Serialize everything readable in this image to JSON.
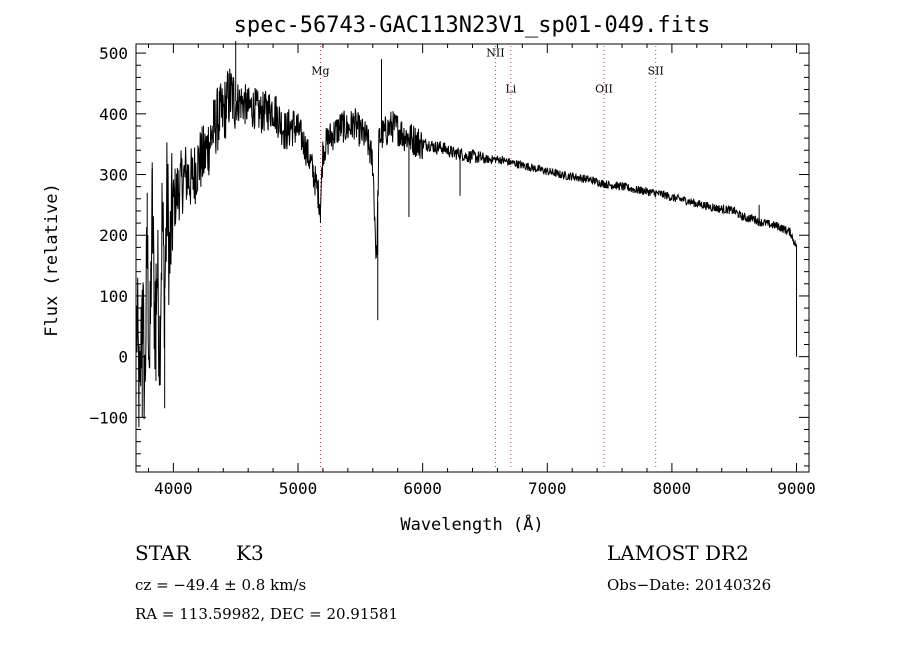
{
  "chart_data": {
    "type": "line",
    "title": "spec-56743-GAC113N23V1_sp01-049.fits",
    "xlabel": "Wavelength (Å)",
    "ylabel": "Flux (relative)",
    "xlim": [
      3700,
      9100
    ],
    "ylim": [
      -190,
      515
    ],
    "x_ticks": [
      4000,
      5000,
      6000,
      7000,
      8000,
      9000
    ],
    "x_tick_labels": [
      "4000",
      "5000",
      "6000",
      "7000",
      "8000",
      "9000"
    ],
    "y_ticks": [
      -100,
      0,
      100,
      200,
      300,
      400,
      500
    ],
    "y_tick_labels": [
      "−100",
      "0",
      "100",
      "200",
      "300",
      "400",
      "500"
    ],
    "grid": false,
    "series": [
      {
        "x": [
          3710,
          3730,
          3750,
          3770,
          3790,
          3810,
          3830,
          3850,
          3870,
          3890,
          3910,
          3930,
          3950,
          3970,
          3990,
          4010,
          4050,
          4100,
          4150,
          4200,
          4250,
          4300,
          4350,
          4400,
          4450,
          4500,
          4550,
          4600,
          4650,
          4700,
          4750,
          4800,
          4850,
          4900,
          4950,
          5000,
          5050,
          5100,
          5150,
          5180,
          5200,
          5250,
          5300,
          5350,
          5400,
          5450,
          5500,
          5550,
          5600,
          5630,
          5650,
          5700,
          5750,
          5800,
          5850,
          5900,
          5950,
          6000,
          6050,
          6100,
          6150,
          6200,
          6250,
          6300,
          6350,
          6400,
          6450,
          6500,
          6550,
          6600,
          6650,
          6700,
          6750,
          6800,
          6850,
          6900,
          6950,
          7000,
          7050,
          7100,
          7150,
          7200,
          7250,
          7300,
          7350,
          7400,
          7450,
          7500,
          7550,
          7600,
          7650,
          7700,
          7750,
          7800,
          7850,
          7900,
          7950,
          8000,
          8050,
          8100,
          8150,
          8200,
          8250,
          8300,
          8350,
          8400,
          8450,
          8500,
          8550,
          8600,
          8650,
          8700,
          8750,
          8800,
          8850,
          8900,
          8950,
          8990
        ],
        "y": [
          50,
          -95,
          110,
          -60,
          180,
          -20,
          250,
          60,
          150,
          20,
          230,
          100,
          270,
          150,
          240,
          260,
          280,
          300,
          290,
          320,
          330,
          360,
          390,
          400,
          430,
          420,
          420,
          410,
          410,
          400,
          405,
          410,
          390,
          370,
          380,
          375,
          350,
          320,
          280,
          250,
          340,
          360,
          370,
          380,
          375,
          385,
          370,
          360,
          320,
          150,
          360,
          370,
          380,
          375,
          365,
          360,
          355,
          350,
          350,
          345,
          345,
          340,
          335,
          335,
          330,
          330,
          328,
          325,
          325,
          325,
          323,
          320,
          318,
          315,
          313,
          310,
          308,
          305,
          303,
          300,
          298,
          297,
          295,
          293,
          291,
          288,
          285,
          283,
          282,
          280,
          278,
          275,
          274,
          272,
          270,
          268,
          266,
          262,
          260,
          258,
          255,
          252,
          250,
          247,
          245,
          243,
          242,
          240,
          232,
          228,
          228,
          222,
          220,
          217,
          215,
          210,
          205,
          185
        ]
      }
    ],
    "spikes": [
      {
        "x": 3750,
        "y": -100
      },
      {
        "x": 3790,
        "y": 270
      },
      {
        "x": 3830,
        "y": 320
      },
      {
        "x": 3860,
        "y": -40
      },
      {
        "x": 3930,
        "y": -85
      },
      {
        "x": 4500,
        "y": 520
      },
      {
        "x": 5180,
        "y": 220
      },
      {
        "x": 5640,
        "y": 60
      },
      {
        "x": 5670,
        "y": 490
      },
      {
        "x": 5890,
        "y": 230
      },
      {
        "x": 6300,
        "y": 265
      },
      {
        "x": 8700,
        "y": 250
      },
      {
        "x": 9000,
        "y": 0
      }
    ],
    "lines": [
      {
        "label": "Mg",
        "x": 5180,
        "label_y": 465
      },
      {
        "label": "NII",
        "x": 6584,
        "label_y": 494
      },
      {
        "label": "Li",
        "x": 6708,
        "label_y": 435
      },
      {
        "label": "OII",
        "x": 7455,
        "label_y": 435
      },
      {
        "label": "SII",
        "x": 7870,
        "label_y": 465
      }
    ]
  },
  "info": {
    "class": "STAR",
    "subclass": "K3",
    "survey": "LAMOST DR2",
    "cz": "cz = −49.4 ± 0.8 km/s",
    "obs_date": "Obs−Date: 20140326",
    "coords": "RA = 113.59982, DEC =  20.91581"
  }
}
